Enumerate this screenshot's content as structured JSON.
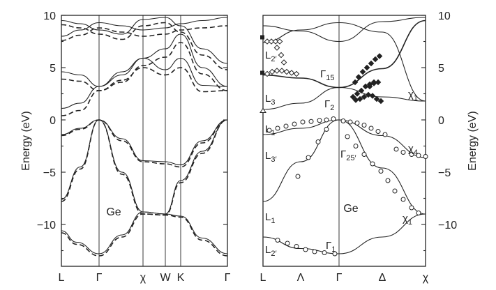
{
  "chart_data": [
    {
      "type": "line",
      "title": "",
      "xlabel": "",
      "ylabel": "Energy (eV)",
      "ylim": [
        -14,
        10
      ],
      "yticks": [
        "10",
        "5",
        "0",
        "−5",
        "−10"
      ],
      "ytick_values": [
        10,
        5,
        0,
        -5,
        -10
      ],
      "x_points": [
        "L",
        "Γ",
        "χ",
        "W",
        "K",
        "Γ"
      ],
      "annotations": [
        {
          "text": "Ge"
        }
      ],
      "series": [
        {
          "style": "solid",
          "values": [
            [
              0,
              -10.6
            ],
            [
              0.15,
              -11.6
            ],
            [
              0.3,
              -12.3
            ],
            [
              0.45,
              -12.6
            ],
            [
              0.6,
              -12.8
            ]
          ]
        },
        {
          "style": "dashed",
          "values": [
            [
              0,
              -10.7
            ],
            [
              0.15,
              -11.7
            ],
            [
              0.3,
              -12.4
            ],
            [
              0.45,
              -12.7
            ],
            [
              0.6,
              -12.9
            ]
          ]
        },
        {
          "style": "solid",
          "values": [
            [
              0,
              -7.6
            ],
            [
              0.2,
              -6.2
            ],
            [
              0.4,
              -4.0
            ],
            [
              0.6,
              -1.6
            ],
            [
              0.8,
              0
            ]
          ]
        },
        {
          "style": "dashed",
          "values": [
            [
              0,
              -7.8
            ],
            [
              0.2,
              -6.4
            ],
            [
              0.4,
              -4.2
            ],
            [
              0.6,
              -1.7
            ],
            [
              0.8,
              0
            ]
          ]
        },
        {
          "style": "solid",
          "values": [
            [
              0,
              -1.4
            ],
            [
              0.2,
              -1.2
            ],
            [
              0.4,
              -0.9
            ],
            [
              0.6,
              -0.4
            ],
            [
              0.8,
              0
            ]
          ]
        },
        {
          "style": "dashed",
          "values": [
            [
              0,
              -1.5
            ],
            [
              0.2,
              -1.3
            ],
            [
              0.4,
              -1.0
            ],
            [
              0.6,
              -0.5
            ],
            [
              0.8,
              0
            ]
          ]
        },
        {
          "style": "solid",
          "values": [
            [
              0,
              1.1
            ],
            [
              0.2,
              1.5
            ],
            [
              0.4,
              2.2
            ],
            [
              0.6,
              2.8
            ],
            [
              0.8,
              3.2
            ]
          ]
        },
        {
          "style": "dashed",
          "values": [
            [
              0,
              0.4
            ],
            [
              0.2,
              0.9
            ],
            [
              0.4,
              1.6
            ],
            [
              0.6,
              2.2
            ],
            [
              0.8,
              2.8
            ]
          ]
        },
        {
          "style": "solid",
          "values": [
            [
              0,
              4.6
            ],
            [
              0.2,
              4.6
            ],
            [
              0.4,
              4.4
            ],
            [
              0.6,
              3.9
            ],
            [
              0.8,
              3.2
            ]
          ]
        },
        {
          "style": "dashed",
          "values": [
            [
              0,
              3.9
            ],
            [
              0.2,
              3.9
            ],
            [
              0.4,
              3.7
            ],
            [
              0.6,
              3.2
            ],
            [
              0.8,
              2.8
            ]
          ]
        },
        {
          "style": "solid",
          "values": [
            [
              0,
              8.0
            ],
            [
              0.2,
              8.3
            ],
            [
              0.4,
              8.7
            ],
            [
              0.6,
              9.0
            ],
            [
              0.8,
              9.2
            ]
          ]
        },
        {
          "style": "dashed",
          "values": [
            [
              0,
              7.6
            ],
            [
              0.2,
              7.9
            ],
            [
              0.4,
              8.2
            ],
            [
              0.6,
              8.5
            ],
            [
              0.8,
              8.7
            ]
          ]
        }
      ]
    },
    {
      "type": "line",
      "title": "",
      "xlabel": "",
      "ylabel": "Energy (eV)",
      "ylim": [
        -14,
        10
      ],
      "yticks": [
        "10",
        "5",
        "0",
        "−5",
        "−10"
      ],
      "ytick_values": [
        10,
        5,
        0,
        -5,
        -10
      ],
      "x_points": [
        "L",
        "Λ",
        "Γ",
        "Δ",
        "χ"
      ],
      "annotations": [
        {
          "text": "Ge"
        }
      ],
      "point_labels": [
        {
          "base": "L",
          "sub": "2′"
        },
        {
          "base": "Γ",
          "sub": "15"
        },
        {
          "base": "L",
          "sub": "3"
        },
        {
          "base": "Γ",
          "sub": "2"
        },
        {
          "base": "χ",
          "sub": "1"
        },
        {
          "base": "L",
          "sub": "1"
        },
        {
          "base": "χ",
          "sub": "4"
        },
        {
          "base": "L",
          "sub": "3′"
        },
        {
          "base": "Γ",
          "sub": "25′"
        },
        {
          "base": "L",
          "sub": "1"
        },
        {
          "base": "χ",
          "sub": "1"
        },
        {
          "base": "L",
          "sub": "2′"
        },
        {
          "base": "Γ",
          "sub": "1"
        }
      ],
      "series": [
        {
          "style": "solid",
          "values": [
            [
              0,
              -11.2
            ],
            [
              0.25,
              -11.9
            ],
            [
              0.5,
              -12.5
            ],
            [
              0.75,
              -12.8
            ],
            [
              1.0,
              -12.9
            ]
          ]
        },
        {
          "style": "solid",
          "values": [
            [
              0,
              -7.8
            ],
            [
              0.25,
              -6.0
            ],
            [
              0.5,
              -3.8
            ],
            [
              0.75,
              -1.7
            ],
            [
              1.0,
              0
            ]
          ]
        },
        {
          "style": "solid",
          "values": [
            [
              0,
              -1.4
            ],
            [
              0.25,
              -1.1
            ],
            [
              0.5,
              -0.7
            ],
            [
              0.75,
              -0.3
            ],
            [
              1.0,
              0
            ]
          ]
        },
        {
          "style": "solid",
          "values": [
            [
              0,
              4.3
            ],
            [
              0.25,
              4.2
            ],
            [
              0.5,
              4.0
            ],
            [
              0.75,
              3.6
            ],
            [
              1.0,
              3.1
            ]
          ]
        },
        {
          "style": "solid",
          "values": [
            [
              0,
              1.0
            ],
            [
              0.25,
              1.4
            ],
            [
              0.5,
              2.0
            ],
            [
              0.75,
              2.6
            ],
            [
              1.0,
              3.1
            ]
          ]
        },
        {
          "style": "solid",
          "values": [
            [
              0,
              7.4
            ],
            [
              0.25,
              8.2
            ],
            [
              0.5,
              8.8
            ],
            [
              0.75,
              9.2
            ],
            [
              1.0,
              9.3
            ]
          ]
        }
      ],
      "markers": {
        "open_circles": [
          [
            0.08,
            -11.7
          ],
          [
            0.2,
            -12.1
          ],
          [
            0.35,
            -12.5
          ],
          [
            0.5,
            -12.7
          ],
          [
            0.7,
            -12.8
          ],
          [
            0.9,
            -12.9
          ],
          [
            0.05,
            -1.3
          ],
          [
            0.2,
            -1.1
          ],
          [
            0.4,
            -0.8
          ],
          [
            0.6,
            -0.4
          ],
          [
            0.85,
            -0.1
          ],
          [
            1.0,
            0
          ],
          [
            0.6,
            -5.5
          ],
          [
            0.75,
            -3.5
          ],
          [
            0.9,
            -1.5
          ]
        ],
        "open_diamonds": [
          [
            0.02,
            7.6
          ],
          [
            0.08,
            7.5
          ],
          [
            0.14,
            7.4
          ],
          [
            0.2,
            7.0
          ],
          [
            0.3,
            6.0
          ],
          [
            0.35,
            5.0
          ],
          [
            0.05,
            4.5
          ],
          [
            0.15,
            4.7
          ],
          [
            0.25,
            4.6
          ],
          [
            0.38,
            4.4
          ],
          [
            0.45,
            4.3
          ]
        ],
        "filled_diamonds": [
          [
            1.2,
            3.5
          ],
          [
            1.3,
            4.3
          ],
          [
            1.4,
            5.0
          ],
          [
            1.5,
            5.5
          ],
          [
            1.6,
            6.0
          ],
          [
            1.25,
            2.0
          ],
          [
            1.35,
            2.3
          ],
          [
            1.5,
            2.5
          ],
          [
            1.65,
            2.4
          ],
          [
            1.8,
            2.0
          ],
          [
            1.5,
            3.4
          ],
          [
            1.7,
            3.6
          ]
        ]
      }
    }
  ]
}
